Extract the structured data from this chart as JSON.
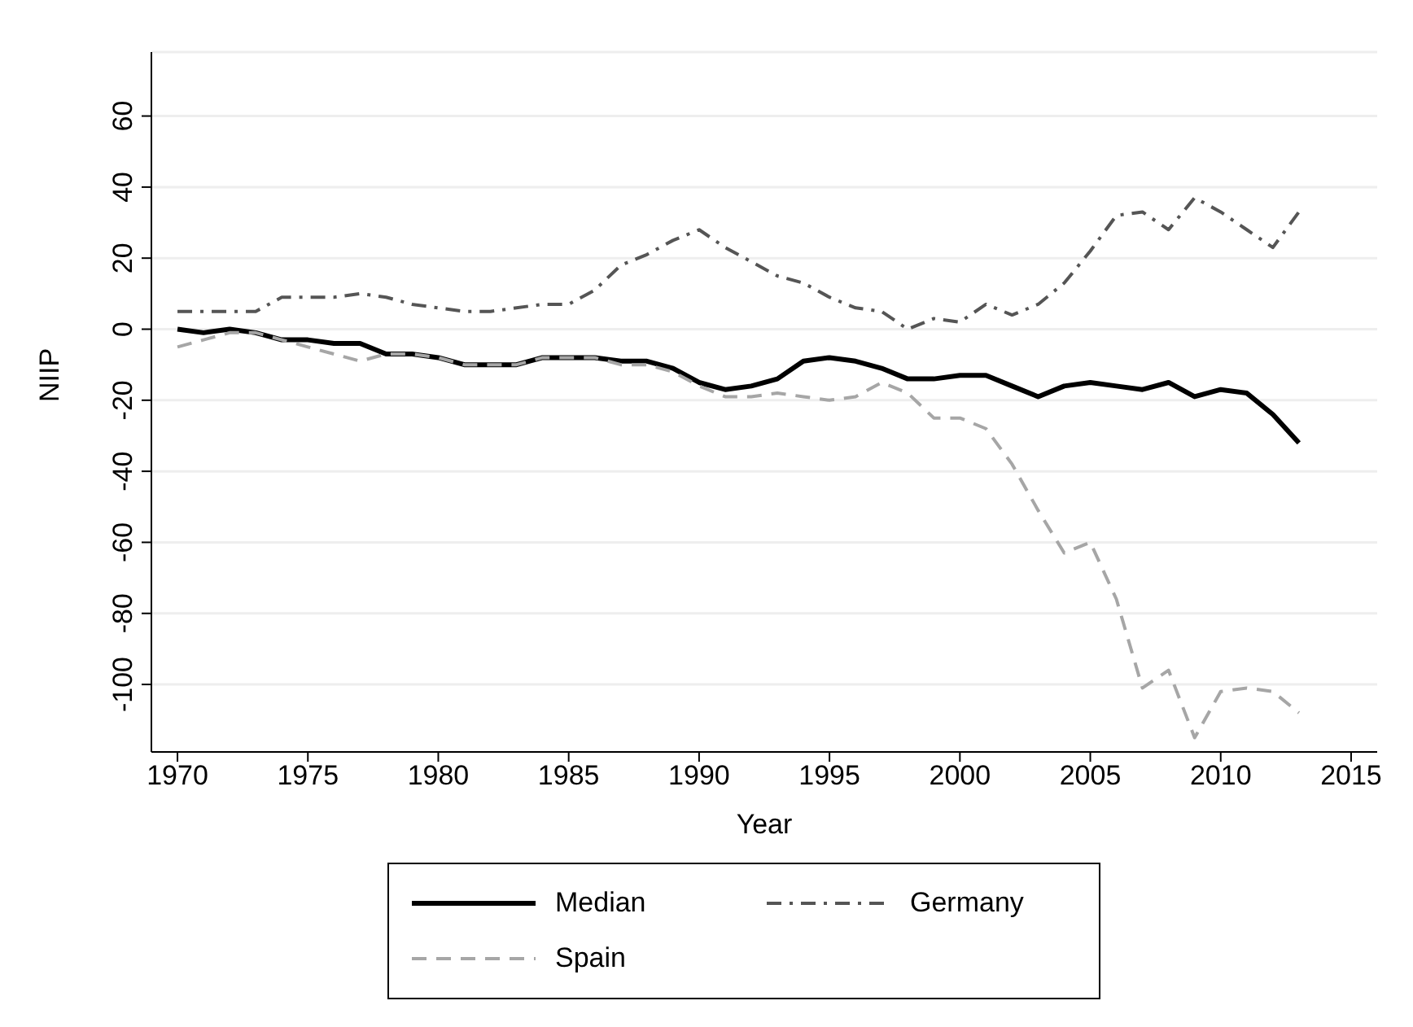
{
  "chart_data": {
    "type": "line",
    "xlabel": "Year",
    "ylabel": "NIIP",
    "x": [
      1970,
      1971,
      1972,
      1973,
      1974,
      1975,
      1976,
      1977,
      1978,
      1979,
      1980,
      1981,
      1982,
      1983,
      1984,
      1985,
      1986,
      1987,
      1988,
      1989,
      1990,
      1991,
      1992,
      1993,
      1994,
      1995,
      1996,
      1997,
      1998,
      1999,
      2000,
      2001,
      2002,
      2003,
      2004,
      2005,
      2006,
      2007,
      2008,
      2009,
      2010,
      2011,
      2012,
      2013
    ],
    "series": [
      {
        "name": "Median",
        "color": "#000000",
        "line_style": "solid",
        "values": [
          0,
          -1,
          0,
          -1,
          -3,
          -3,
          -4,
          -4,
          -7,
          -7,
          -8,
          -10,
          -10,
          -10,
          -8,
          -8,
          -8,
          -9,
          -9,
          -11,
          -15,
          -17,
          -16,
          -14,
          -9,
          -8,
          -9,
          -11,
          -14,
          -14,
          -13,
          -13,
          -16,
          -19,
          -16,
          -15,
          -16,
          -17,
          -15,
          -19,
          -17,
          -18,
          -24,
          -32
        ]
      },
      {
        "name": "Germany",
        "color": "#555555",
        "line_style": "dashdot",
        "values": [
          5,
          5,
          5,
          5,
          9,
          9,
          9,
          10,
          9,
          7,
          6,
          5,
          5,
          6,
          7,
          7,
          11,
          18,
          21,
          25,
          28,
          23,
          19,
          15,
          13,
          9,
          6,
          5,
          0,
          3,
          2,
          7,
          4,
          7,
          13,
          22,
          32,
          33,
          28,
          37,
          33,
          28,
          23,
          33
        ]
      },
      {
        "name": "Spain",
        "color": "#a6a6a6",
        "line_style": "dashed",
        "values": [
          -5,
          -3,
          -1,
          -1,
          -3,
          -5,
          -7,
          -9,
          -7,
          -7,
          -8,
          -10,
          -10,
          -10,
          -8,
          -8,
          -8,
          -10,
          -10,
          -12,
          -16,
          -19,
          -19,
          -18,
          -19,
          -20,
          -19,
          -15,
          -18,
          -25,
          -25,
          -28,
          -38,
          -51,
          -63,
          -60,
          -76,
          -101,
          -96,
          -115,
          -102,
          -101,
          -102,
          -108
        ]
      }
    ],
    "xlim": [
      1969,
      2016
    ],
    "xticks": [
      1970,
      1975,
      1980,
      1985,
      1990,
      1995,
      2000,
      2005,
      2010,
      2015
    ],
    "ylim": [
      -119,
      78
    ],
    "yticks": [
      -100,
      -80,
      -60,
      -40,
      -20,
      0,
      20,
      40,
      60
    ],
    "grid": "y",
    "legend": "bottom",
    "marker": "none"
  }
}
